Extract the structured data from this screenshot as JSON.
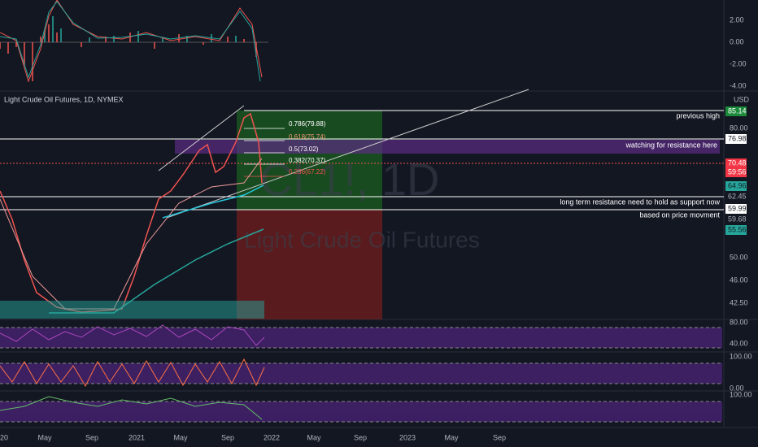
{
  "top_panel": {
    "ticks": [
      "2.00",
      "0.00",
      "-2.00",
      "-4.00"
    ]
  },
  "main_panel": {
    "title": "Light Crude Oil Futures, 1D, NYMEX",
    "currency": "USD",
    "watermark_symbol": "CL1!, 1D",
    "watermark_name": "Light Crude Oil Futures",
    "price_labels": [
      "85.14",
      "80.00",
      "76.98",
      "70.48",
      "59:56",
      "64.96",
      "62.45",
      "59.99",
      "59.68",
      "55.56",
      "50.00",
      "46.00",
      "42.50"
    ],
    "annotations": [
      "previous high",
      "watching for resistance here",
      "long term resistance need to hold as support now",
      "based on price movment"
    ],
    "fib_levels": [
      "0.786(79.88)",
      "0.618(75.74)",
      "0.5(73.02)",
      "0.382(70.37)",
      "0.236(67.22)"
    ]
  },
  "lower_panels": {
    "ticks": [
      "80.00",
      "40.00",
      "100.00",
      "0.00",
      "100.00"
    ]
  },
  "x_axis": {
    "labels": [
      "20",
      "May",
      "Sep",
      "2021",
      "May",
      "Sep",
      "2022",
      "May",
      "Sep",
      "2023",
      "May",
      "Sep"
    ]
  }
}
